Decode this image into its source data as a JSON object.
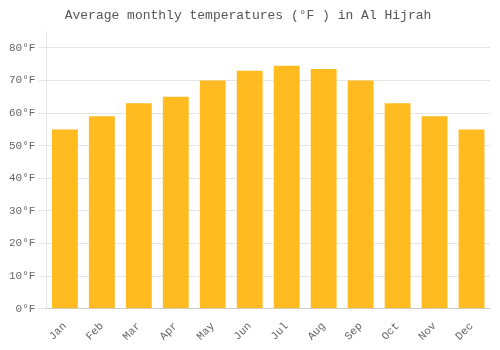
{
  "chart_data": {
    "type": "bar",
    "title": "Average monthly temperatures (°F ) in Al Hijrah",
    "categories": [
      "Jan",
      "Feb",
      "Mar",
      "Apr",
      "May",
      "Jun",
      "Jul",
      "Aug",
      "Sep",
      "Oct",
      "Nov",
      "Dec"
    ],
    "values": [
      55,
      59,
      63,
      65,
      70,
      73,
      74.5,
      73.5,
      70,
      63,
      59,
      55
    ],
    "color": "#FFBB20",
    "ylim": [
      0,
      85
    ],
    "yticks": [
      {
        "value": 0,
        "label": "0°F"
      },
      {
        "value": 10,
        "label": "10°F"
      },
      {
        "value": 20,
        "label": "20°F"
      },
      {
        "value": 30,
        "label": "30°F"
      },
      {
        "value": 40,
        "label": "40°F"
      },
      {
        "value": 50,
        "label": "50°F"
      },
      {
        "value": 60,
        "label": "60°F"
      },
      {
        "value": 70,
        "label": "70°F"
      },
      {
        "value": 80,
        "label": "80°F"
      }
    ],
    "grid": true
  }
}
